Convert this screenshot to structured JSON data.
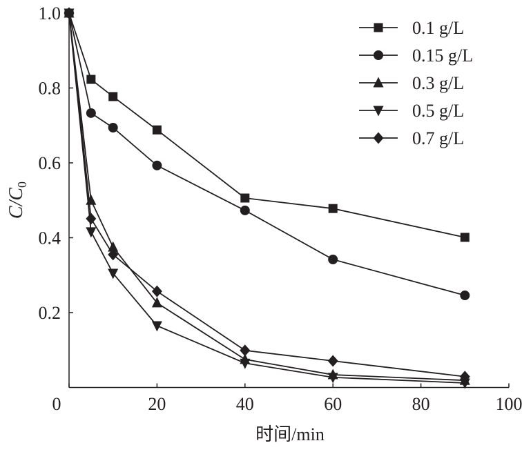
{
  "chart_data": {
    "type": "line",
    "title": "",
    "xlabel": "时间/min",
    "ylabel_main": "C/C",
    "ylabel_sub": "0",
    "xlim": [
      0,
      100
    ],
    "ylim": [
      0,
      1.0
    ],
    "xticks": [
      0,
      20,
      40,
      60,
      80,
      100
    ],
    "xtick_labels": [
      "0",
      "20",
      "40",
      "60",
      "80",
      "100"
    ],
    "yticks": [
      0.2,
      0.4,
      0.6,
      0.8,
      1.0
    ],
    "ytick_labels": [
      "0.2",
      "0.4",
      "0.6",
      "0.8",
      "1.0"
    ],
    "legend_position": "top-right",
    "grid": false,
    "x": [
      0,
      5,
      10,
      20,
      40,
      60,
      90
    ],
    "series": [
      {
        "name": "0.1 g/L",
        "marker": "square",
        "values": [
          1.0,
          0.823,
          0.777,
          0.688,
          0.506,
          0.478,
          0.401
        ]
      },
      {
        "name": "0.15 g/L",
        "marker": "circle",
        "values": [
          1.0,
          0.733,
          0.694,
          0.593,
          0.473,
          0.342,
          0.246
        ]
      },
      {
        "name": "0.3 g/L",
        "marker": "triangle-up",
        "values": [
          1.0,
          0.5,
          0.375,
          0.226,
          0.075,
          0.034,
          0.019
        ]
      },
      {
        "name": "0.5 g/L",
        "marker": "triangle-down",
        "values": [
          1.0,
          0.416,
          0.305,
          0.165,
          0.065,
          0.027,
          0.012
        ]
      },
      {
        "name": "0.7 g/L",
        "marker": "diamond",
        "values": [
          1.0,
          0.451,
          0.355,
          0.257,
          0.099,
          0.071,
          0.029
        ]
      }
    ],
    "color": "#231f20"
  }
}
